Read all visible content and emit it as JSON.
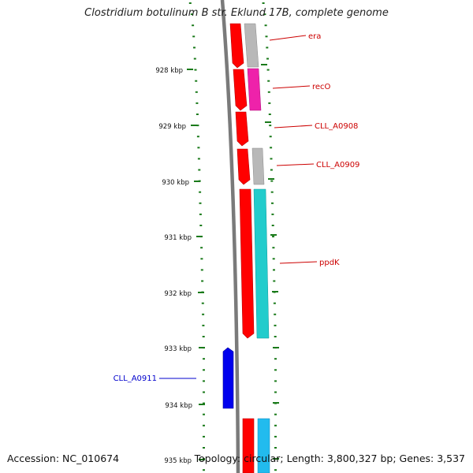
{
  "title": "Clostridium botulinum B str. Eklund 17B, complete genome",
  "accession": "Accession: NC_010674",
  "summary": "Topology: circular; Length: 3,800,327 bp; Genes: 3,537",
  "colors": {
    "tick": "#1a7a1a",
    "backbone": "#7a7a7a",
    "gene_red": "#ff0000",
    "gene_label_red": "#cc0000",
    "gene_label_blue": "#0000cc",
    "gene_blue": "#0000ee",
    "feature_gray": "#b8b8b8",
    "feature_magenta": "#ee22aa",
    "feature_cyan": "#22cccc",
    "feature_skyblue": "#22bbee"
  },
  "scale_labels": [
    "928 kbp",
    "929 kbp",
    "930 kbp",
    "931 kbp",
    "932 kbp",
    "933 kbp",
    "934 kbp",
    "935 kbp"
  ],
  "gene_labels": [
    "era",
    "recO",
    "CLL_A0908",
    "CLL_A0909",
    "ppdK",
    "CLL_A0911"
  ]
}
